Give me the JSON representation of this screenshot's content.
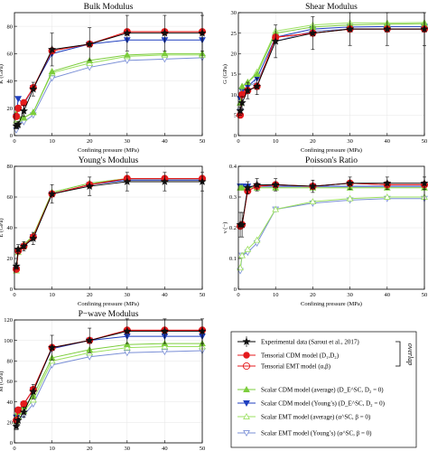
{
  "colors": {
    "experimental": "#000000",
    "tensorial_cdm": "#e41a1c",
    "tensorial_emt": "#e41a1c",
    "scalar_cdm_avg": "#7ccd3c",
    "scalar_cdm_young": "#1f3fbf",
    "scalar_emt_avg": "#9be060",
    "scalar_emt_young": "#7a8fd6"
  },
  "legend": {
    "entries": [
      {
        "key": "experimental",
        "label": "Experimental data (Sarout et al., 2017)",
        "icon": "star-icon"
      },
      {
        "key": "tensorial_cdm",
        "label": "Tensorial CDM model (D₁,D₂)",
        "icon": "filled-circle-icon"
      },
      {
        "key": "tensorial_emt",
        "label": "Tensorial EMT model (α,β)",
        "icon": "open-circle-icon"
      },
      {
        "key": "scalar_cdm_avg",
        "label": "Scalar CDM model (average)   (D_E^SC, D₂ = 0)",
        "icon": "filled-triangle-up-icon"
      },
      {
        "key": "scalar_cdm_young",
        "label": "Scalar CDM model (Young’s)  (D_E^SC, D₂ = 0)",
        "icon": "filled-triangle-down-icon"
      },
      {
        "key": "scalar_emt_avg",
        "label": "Scalar EMT model (average)   (α^SC, β = 0)",
        "icon": "open-triangle-up-icon"
      },
      {
        "key": "scalar_emt_young",
        "label": "Scalar EMT model (Young’s)  (α^SC, β = 0)",
        "icon": "open-triangle-down-icon"
      }
    ],
    "overlap_label": "overlap"
  },
  "chart_data": [
    {
      "type": "line",
      "title": "Bulk Modulus",
      "xlabel": "Confining pressure (MPa)",
      "ylabel": "K (GPa)",
      "xlim": [
        0,
        50
      ],
      "ylim": [
        0,
        90
      ],
      "xticks": [
        0,
        10,
        20,
        30,
        40,
        50
      ],
      "yticks": [
        0,
        20,
        40,
        60,
        80
      ],
      "x": [
        0.5,
        1,
        2.5,
        5,
        10,
        20,
        30,
        40,
        50
      ],
      "series": [
        {
          "key": "experimental",
          "values": [
            7,
            8,
            18,
            34,
            63,
            67,
            75,
            75,
            75
          ],
          "errors": [
            2,
            2,
            4,
            5,
            12,
            12,
            13,
            13,
            13
          ]
        },
        {
          "key": "tensorial_cdm",
          "values": [
            14,
            20,
            24,
            35,
            62,
            67,
            76,
            76,
            76
          ]
        },
        {
          "key": "tensorial_emt",
          "values": [
            14,
            20,
            24,
            35,
            62,
            67,
            76,
            76,
            76
          ]
        },
        {
          "key": "scalar_cdm_avg",
          "values": [
            16,
            14,
            13,
            17,
            47,
            55,
            59,
            60,
            60
          ]
        },
        {
          "key": "scalar_cdm_young",
          "values": [
            14,
            27,
            23,
            35,
            60,
            67,
            70,
            70,
            70
          ]
        },
        {
          "key": "scalar_emt_avg",
          "values": [
            11,
            12,
            13,
            17,
            46,
            53,
            58,
            59,
            59
          ]
        },
        {
          "key": "scalar_emt_young",
          "values": [
            4,
            9,
            10,
            15,
            42,
            50,
            55,
            56,
            57
          ]
        }
      ]
    },
    {
      "type": "line",
      "title": "Shear Modulus",
      "xlabel": "Confining pressure (MPa)",
      "ylabel": "G (GPa)",
      "xlim": [
        0,
        50
      ],
      "ylim": [
        0,
        30
      ],
      "xticks": [
        0,
        10,
        20,
        30,
        40,
        50
      ],
      "yticks": [
        0,
        5,
        10,
        15,
        20,
        25,
        30
      ],
      "x": [
        0.5,
        1,
        2.5,
        5,
        10,
        20,
        30,
        40,
        50
      ],
      "series": [
        {
          "key": "experimental",
          "values": [
            6,
            8,
            11,
            12,
            23,
            25,
            26,
            26,
            26
          ],
          "errors": [
            1,
            1.5,
            2,
            2,
            4,
            4,
            4,
            4,
            4
          ]
        },
        {
          "key": "tensorial_cdm",
          "values": [
            5,
            10,
            11,
            12,
            24,
            25,
            26,
            26,
            26
          ]
        },
        {
          "key": "tensorial_emt",
          "values": [
            5,
            10,
            11,
            12,
            24,
            25,
            26,
            26,
            26
          ]
        },
        {
          "key": "scalar_cdm_avg",
          "values": [
            8,
            12,
            13,
            15,
            25,
            26.5,
            27,
            27.2,
            27.3
          ]
        },
        {
          "key": "scalar_cdm_young",
          "values": [
            9,
            11,
            12,
            14,
            24,
            26,
            26.5,
            26.6,
            26.6
          ]
        },
        {
          "key": "scalar_emt_avg",
          "values": [
            8,
            12,
            13,
            15.5,
            25.5,
            27,
            27.5,
            27.5,
            27.6
          ]
        },
        {
          "key": "scalar_emt_young",
          "values": [
            6,
            10,
            12,
            13,
            23,
            25.5,
            26,
            26,
            26
          ]
        }
      ]
    },
    {
      "type": "line",
      "title": "Young's Modulus",
      "xlabel": "Confining pressure (MPa)",
      "ylabel": "E (GPa)",
      "xlim": [
        0,
        50
      ],
      "ylim": [
        0,
        80
      ],
      "xticks": [
        0,
        10,
        20,
        30,
        40,
        50
      ],
      "yticks": [
        0,
        20,
        40,
        60,
        80
      ],
      "x": [
        0.5,
        1,
        2.5,
        5,
        10,
        20,
        30,
        40,
        50
      ],
      "series": [
        {
          "key": "experimental",
          "values": [
            15,
            26,
            28,
            33,
            62,
            67,
            70,
            70,
            70
          ],
          "errors": [
            2,
            3,
            3,
            4,
            6,
            6,
            6,
            6,
            6
          ]
        },
        {
          "key": "tensorial_cdm",
          "values": [
            13,
            25,
            28,
            34,
            62,
            68,
            72,
            72,
            72
          ]
        },
        {
          "key": "tensorial_emt",
          "values": [
            13,
            25,
            28,
            34,
            62,
            68,
            72,
            72,
            72
          ]
        },
        {
          "key": "scalar_cdm_avg",
          "values": [
            14,
            26,
            29,
            35,
            63,
            69,
            72,
            72,
            72
          ]
        },
        {
          "key": "scalar_cdm_young",
          "values": [
            13,
            25,
            28,
            34,
            62,
            68,
            71,
            71,
            71
          ]
        },
        {
          "key": "scalar_emt_avg",
          "values": [
            12,
            24,
            28,
            35,
            63,
            69,
            72,
            72,
            72
          ]
        },
        {
          "key": "scalar_emt_young",
          "values": [
            13,
            25,
            28,
            34,
            62,
            68,
            71,
            71,
            71
          ]
        }
      ]
    },
    {
      "type": "line",
      "title": "Poisson's Ratio",
      "xlabel": "Confining pressure (MPa)",
      "ylabel": "ν (−)",
      "xlim": [
        0,
        50
      ],
      "ylim": [
        0,
        0.4
      ],
      "xticks": [
        0,
        10,
        20,
        30,
        40,
        50
      ],
      "yticks": [
        0,
        0.1,
        0.2,
        0.3,
        0.4
      ],
      "x": [
        0.5,
        1,
        2.5,
        5,
        10,
        20,
        30,
        40,
        50
      ],
      "series": [
        {
          "key": "experimental",
          "values": [
            0.21,
            0.21,
            0.33,
            0.34,
            0.34,
            0.335,
            0.345,
            0.345,
            0.345
          ],
          "errors": [
            0.04,
            0.04,
            0.02,
            0.02,
            0.02,
            0.02,
            0.02,
            0.02,
            0.02
          ]
        },
        {
          "key": "tensorial_cdm",
          "values": [
            0.205,
            0.21,
            0.32,
            0.335,
            0.34,
            0.335,
            0.345,
            0.34,
            0.34
          ]
        },
        {
          "key": "tensorial_emt",
          "values": [
            0.205,
            0.21,
            0.32,
            0.335,
            0.34,
            0.335,
            0.345,
            0.34,
            0.34
          ]
        },
        {
          "key": "scalar_cdm_avg",
          "values": [
            0.33,
            0.33,
            0.33,
            0.33,
            0.33,
            0.33,
            0.33,
            0.33,
            0.33
          ]
        },
        {
          "key": "scalar_cdm_young",
          "values": [
            0.335,
            0.335,
            0.335,
            0.335,
            0.335,
            0.335,
            0.335,
            0.335,
            0.335
          ]
        },
        {
          "key": "scalar_emt_avg",
          "values": [
            0.07,
            0.11,
            0.13,
            0.16,
            0.26,
            0.285,
            0.295,
            0.3,
            0.3
          ]
        },
        {
          "key": "scalar_emt_young",
          "values": [
            0.06,
            0.11,
            0.12,
            0.15,
            0.26,
            0.28,
            0.29,
            0.295,
            0.295
          ]
        }
      ]
    },
    {
      "type": "line",
      "title": "P−wave Modulus",
      "xlabel": "Confining pressure (MPa)",
      "ylabel": "M (GPa)",
      "xlim": [
        0,
        50
      ],
      "ylim": [
        0,
        120
      ],
      "xticks": [
        0,
        10,
        20,
        30,
        40,
        50
      ],
      "yticks": [
        0,
        20,
        40,
        60,
        80,
        100,
        120
      ],
      "x": [
        0.5,
        1,
        2.5,
        5,
        10,
        20,
        30,
        40,
        50
      ],
      "series": [
        {
          "key": "experimental",
          "values": [
            16,
            22,
            30,
            50,
            93,
            100,
            109,
            109,
            109
          ],
          "errors": [
            3,
            4,
            5,
            7,
            12,
            12,
            12,
            12,
            12
          ]
        },
        {
          "key": "tensorial_cdm",
          "values": [
            22,
            32,
            38,
            52,
            93,
            100,
            110,
            110,
            110
          ]
        },
        {
          "key": "tensorial_emt",
          "values": [
            22,
            32,
            38,
            52,
            93,
            100,
            110,
            110,
            110
          ]
        },
        {
          "key": "scalar_cdm_avg",
          "values": [
            24,
            30,
            35,
            46,
            83,
            91,
            96,
            97,
            97
          ]
        },
        {
          "key": "scalar_cdm_young",
          "values": [
            25,
            32,
            38,
            52,
            92,
            100,
            104,
            104,
            104
          ]
        },
        {
          "key": "scalar_emt_avg",
          "values": [
            21,
            26,
            31,
            42,
            80,
            88,
            93,
            94,
            94
          ]
        },
        {
          "key": "scalar_emt_young",
          "values": [
            18,
            22,
            27,
            38,
            76,
            84,
            88,
            89,
            90
          ]
        }
      ]
    }
  ]
}
